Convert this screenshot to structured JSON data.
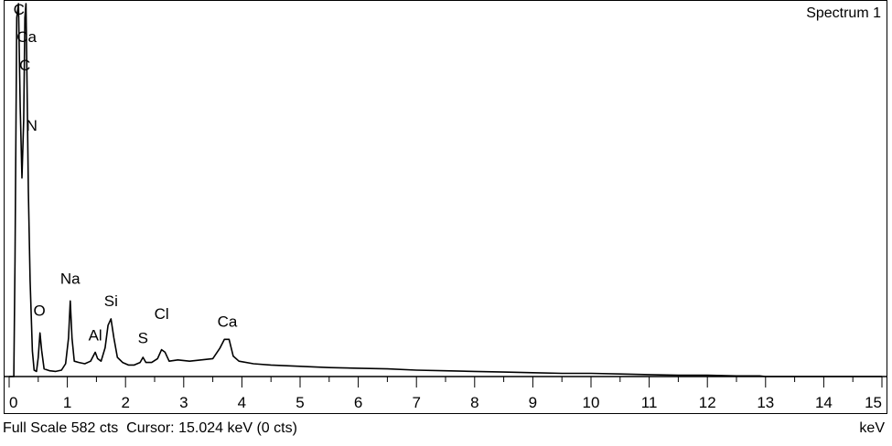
{
  "chart_data": {
    "type": "line",
    "title": "",
    "spectrum_label": "Spectrum 1",
    "xlabel": "keV",
    "xlim": [
      0,
      15
    ],
    "ylim": [
      0,
      582
    ],
    "x_ticks": [
      "0",
      "1",
      "2",
      "3",
      "4",
      "5",
      "6",
      "7",
      "8",
      "9",
      "10",
      "11",
      "12",
      "13",
      "14",
      "15"
    ],
    "full_scale_text": "Full Scale 582 cts",
    "cursor_text": "Cursor: 15.024 keV (0 cts)",
    "colors": {
      "line": "#000000",
      "background": "#ffffff"
    },
    "series": [
      {
        "values": [
          [
            0.0,
            0
          ],
          [
            0.08,
            0
          ],
          [
            0.1,
            180
          ],
          [
            0.13,
            560
          ],
          [
            0.16,
            582
          ],
          [
            0.19,
            420
          ],
          [
            0.22,
            310
          ],
          [
            0.25,
            400
          ],
          [
            0.27,
            560
          ],
          [
            0.29,
            582
          ],
          [
            0.31,
            440
          ],
          [
            0.33,
            290
          ],
          [
            0.36,
            150
          ],
          [
            0.4,
            40
          ],
          [
            0.43,
            10
          ],
          [
            0.47,
            8
          ],
          [
            0.5,
            30
          ],
          [
            0.53,
            68
          ],
          [
            0.56,
            40
          ],
          [
            0.6,
            12
          ],
          [
            0.7,
            9
          ],
          [
            0.8,
            8
          ],
          [
            0.9,
            10
          ],
          [
            0.97,
            20
          ],
          [
            1.02,
            60
          ],
          [
            1.05,
            118
          ],
          [
            1.08,
            60
          ],
          [
            1.12,
            24
          ],
          [
            1.2,
            22
          ],
          [
            1.3,
            20
          ],
          [
            1.4,
            24
          ],
          [
            1.48,
            38
          ],
          [
            1.52,
            28
          ],
          [
            1.58,
            24
          ],
          [
            1.65,
            45
          ],
          [
            1.7,
            80
          ],
          [
            1.75,
            90
          ],
          [
            1.8,
            60
          ],
          [
            1.86,
            30
          ],
          [
            1.95,
            22
          ],
          [
            2.05,
            18
          ],
          [
            2.15,
            18
          ],
          [
            2.25,
            22
          ],
          [
            2.3,
            30
          ],
          [
            2.35,
            22
          ],
          [
            2.45,
            22
          ],
          [
            2.55,
            28
          ],
          [
            2.62,
            42
          ],
          [
            2.68,
            38
          ],
          [
            2.75,
            24
          ],
          [
            2.9,
            26
          ],
          [
            3.1,
            24
          ],
          [
            3.3,
            26
          ],
          [
            3.5,
            28
          ],
          [
            3.62,
            44
          ],
          [
            3.7,
            58
          ],
          [
            3.78,
            58
          ],
          [
            3.85,
            32
          ],
          [
            3.95,
            24
          ],
          [
            4.2,
            20
          ],
          [
            4.5,
            18
          ],
          [
            5.0,
            16
          ],
          [
            5.5,
            14
          ],
          [
            6.0,
            13
          ],
          [
            6.5,
            12
          ],
          [
            7.0,
            10
          ],
          [
            7.5,
            9
          ],
          [
            8.0,
            8
          ],
          [
            8.5,
            7
          ],
          [
            9.0,
            6
          ],
          [
            9.5,
            5
          ],
          [
            10.0,
            5
          ],
          [
            10.5,
            4
          ],
          [
            11.0,
            3
          ],
          [
            11.5,
            2
          ],
          [
            12.0,
            2
          ],
          [
            12.5,
            1
          ],
          [
            12.9,
            1
          ],
          [
            13.0,
            0
          ],
          [
            15.0,
            0
          ]
        ]
      }
    ],
    "annotations": [
      {
        "text": "C",
        "x": 0.17,
        "y": 565
      },
      {
        "text": "Ca",
        "x": 0.3,
        "y": 522
      },
      {
        "text": "C",
        "x": 0.27,
        "y": 478
      },
      {
        "text": "N",
        "x": 0.39,
        "y": 384
      },
      {
        "text": "O",
        "x": 0.52,
        "y": 95
      },
      {
        "text": "Na",
        "x": 1.05,
        "y": 145
      },
      {
        "text": "Al",
        "x": 1.48,
        "y": 56
      },
      {
        "text": "Si",
        "x": 1.75,
        "y": 110
      },
      {
        "text": "S",
        "x": 2.3,
        "y": 52
      },
      {
        "text": "Cl",
        "x": 2.62,
        "y": 90
      },
      {
        "text": "Ca",
        "x": 3.75,
        "y": 78
      }
    ]
  }
}
